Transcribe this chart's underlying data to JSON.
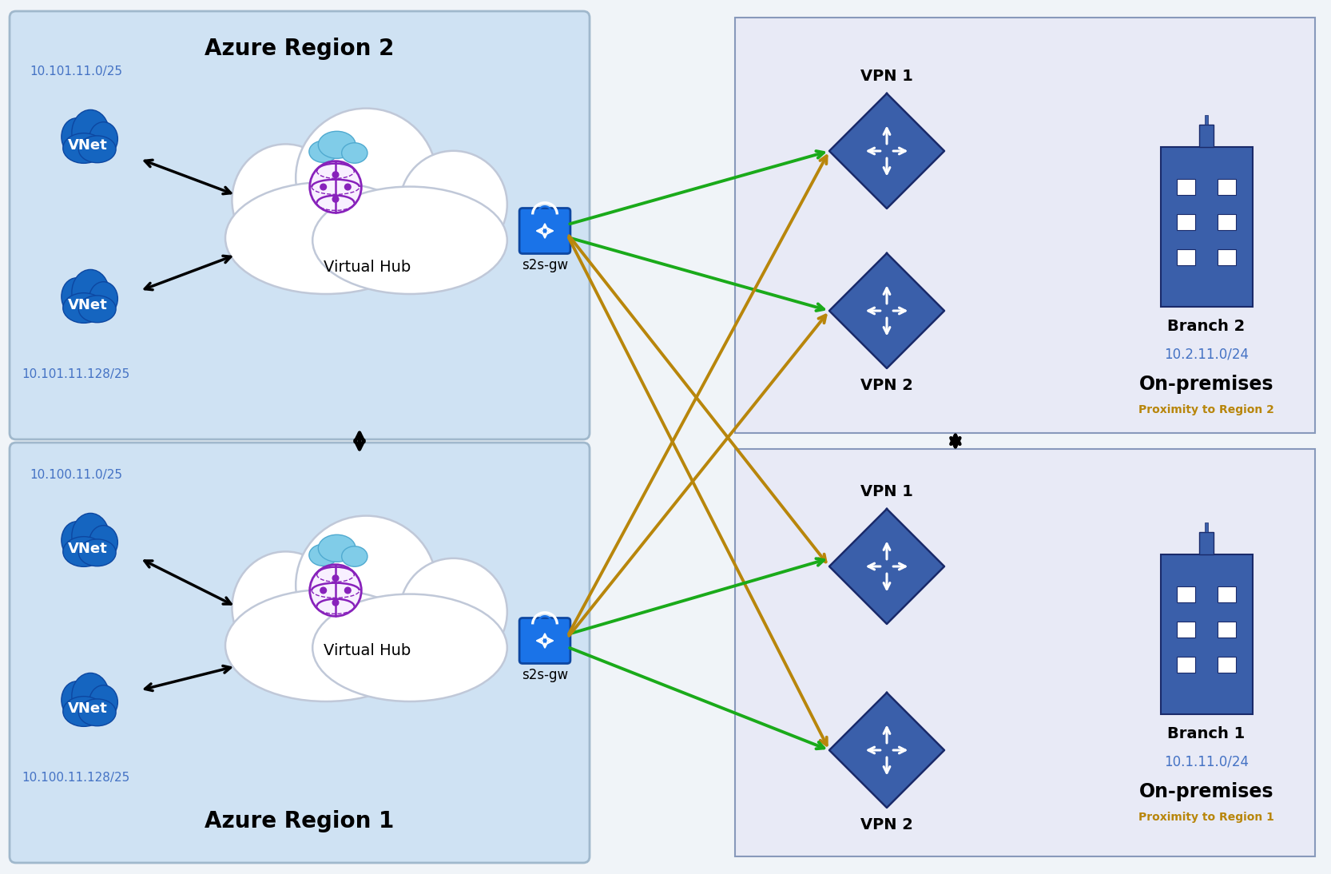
{
  "bg_color": "#f0f4f8",
  "azure_bg": "#cfe2f3",
  "branch_bg": "#e8eaf6",
  "region2_label": "Azure Region 2",
  "region1_label": "Azure Region 1",
  "vnet_color": "#1565c0",
  "lock_color": "#1a73e8",
  "vpn_color": "#3a5faa",
  "branch_color": "#3a5faa",
  "region2_vnets": [
    "10.101.11.0/25",
    "10.101.11.128/25"
  ],
  "region1_vnets": [
    "10.100.11.0/25",
    "10.100.11.128/25"
  ],
  "branch2_label": "Branch 2",
  "branch2_ip": "10.2.11.0/24",
  "branch2_proximity": "Proximity to Region 2",
  "branch1_label": "Branch 1",
  "branch1_ip": "10.1.11.0/24",
  "branch1_proximity": "Proximity to Region 1",
  "on_premises": "On-premises",
  "vpn1_label": "VPN 1",
  "vpn2_label": "VPN 2",
  "s2sgw_label": "s2s-gw",
  "virtual_hub_label": "Virtual Hub",
  "green_color": "#1aaa1a",
  "gold_color": "#b8860b",
  "ip_color": "#4472C4",
  "proximity_color": "#b8860b"
}
